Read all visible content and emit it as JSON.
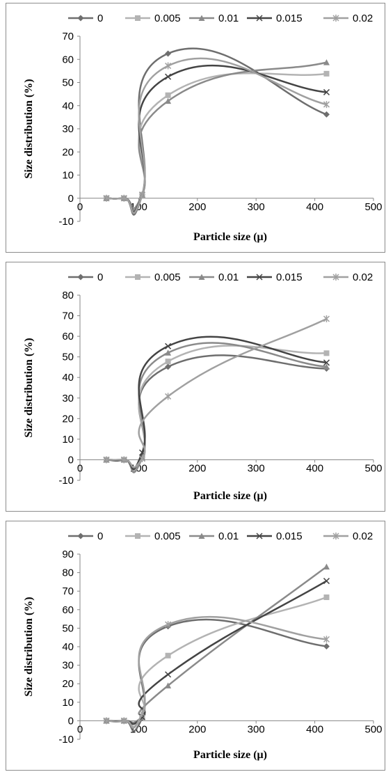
{
  "colors": {
    "series": [
      "#6e6e6e",
      "#b3b3b3",
      "#8a8a8a",
      "#444444",
      "#a0a0a0"
    ],
    "axis": "#868686",
    "frame": "#8c8c8c",
    "background": "#ffffff"
  },
  "chart_data": [
    {
      "type": "line",
      "smooth": true,
      "xlabel": "Particle size (μ)",
      "ylabel": "Size distribution  (%)",
      "xlim": [
        0,
        500
      ],
      "ylim": [
        -10,
        70
      ],
      "xticks": [
        "0",
        "100",
        "200",
        "300",
        "400",
        "500"
      ],
      "yticks": [
        "-10",
        "0",
        "10",
        "20",
        "30",
        "40",
        "50",
        "60",
        "70"
      ],
      "grid": false,
      "legend_position": "top",
      "x": [
        45,
        75,
        106,
        150,
        420
      ],
      "series": [
        {
          "name": "0",
          "marker": "diamond",
          "values": [
            0,
            0,
            1.5,
            62.5,
            36.2
          ]
        },
        {
          "name": "0.005",
          "marker": "square",
          "values": [
            0,
            0,
            1.5,
            44.5,
            53.8
          ]
        },
        {
          "name": "0.01",
          "marker": "triangle",
          "values": [
            0,
            0,
            1.5,
            42.0,
            58.7
          ]
        },
        {
          "name": "0.015",
          "marker": "x",
          "values": [
            0,
            0,
            1.5,
            52.5,
            45.8
          ]
        },
        {
          "name": "0.02",
          "marker": "star",
          "values": [
            0,
            0,
            1.5,
            57.2,
            40.5
          ]
        }
      ]
    },
    {
      "type": "line",
      "smooth": true,
      "xlabel": "Particle size (μ)",
      "ylabel": "Size distribution  (%)",
      "xlim": [
        0,
        500
      ],
      "ylim": [
        -10,
        80
      ],
      "xticks": [
        "0",
        "100",
        "200",
        "300",
        "400",
        "500"
      ],
      "yticks": [
        "-10",
        "0",
        "10",
        "20",
        "30",
        "40",
        "50",
        "60",
        "70",
        "80"
      ],
      "grid": false,
      "legend_position": "top",
      "x": [
        45,
        75,
        106,
        150,
        420
      ],
      "series": [
        {
          "name": "0",
          "marker": "diamond",
          "values": [
            0,
            0,
            1,
            45.2,
            44.3
          ]
        },
        {
          "name": "0.005",
          "marker": "square",
          "values": [
            0,
            0,
            1,
            47.8,
            51.8
          ]
        },
        {
          "name": "0.01",
          "marker": "triangle",
          "values": [
            0,
            0,
            1,
            52.0,
            45.2
          ]
        },
        {
          "name": "0.015",
          "marker": "x",
          "values": [
            0,
            0,
            3.5,
            55.2,
            47.2
          ]
        },
        {
          "name": "0.02",
          "marker": "star",
          "values": [
            0,
            0,
            0.5,
            30.8,
            68.5
          ]
        }
      ]
    },
    {
      "type": "line",
      "smooth": true,
      "xlabel": "Particle size (μ)",
      "ylabel": "Size distribution  (%)",
      "xlim": [
        0,
        500
      ],
      "ylim": [
        -10,
        90
      ],
      "xticks": [
        "0",
        "100",
        "200",
        "300",
        "400",
        "500"
      ],
      "yticks": [
        "-10",
        "0",
        "10",
        "20",
        "30",
        "40",
        "50",
        "60",
        "70",
        "80",
        "90"
      ],
      "grid": false,
      "legend_position": "top",
      "x": [
        45,
        75,
        106,
        150,
        420
      ],
      "series": [
        {
          "name": "0",
          "marker": "diamond",
          "values": [
            0,
            0,
            1.5,
            51.0,
            40.2
          ]
        },
        {
          "name": "0.005",
          "marker": "square",
          "values": [
            0,
            0,
            2,
            35.2,
            66.7
          ]
        },
        {
          "name": "0.01",
          "marker": "triangle",
          "values": [
            0,
            0,
            2,
            19.0,
            83.2
          ]
        },
        {
          "name": "0.015",
          "marker": "x",
          "values": [
            0,
            0,
            2,
            25.0,
            75.5
          ]
        },
        {
          "name": "0.02",
          "marker": "star",
          "values": [
            0,
            0,
            4,
            52.0,
            44.0
          ]
        }
      ]
    }
  ]
}
